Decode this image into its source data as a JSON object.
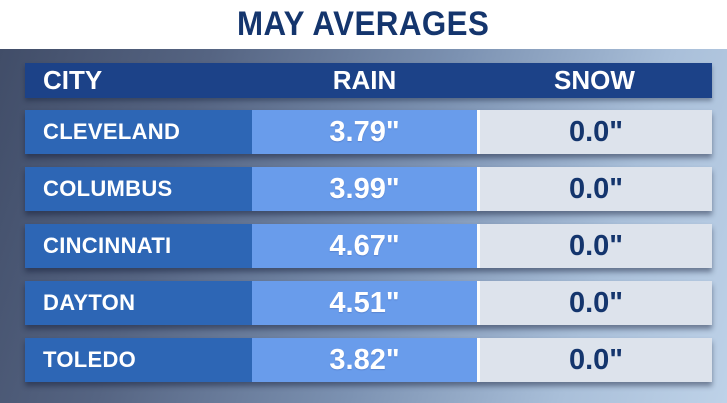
{
  "title": "MAY AVERAGES",
  "table": {
    "columns": [
      "CITY",
      "RAIN",
      "SNOW"
    ],
    "rows": [
      {
        "city": "CLEVELAND",
        "rain": "3.79\"",
        "snow": "0.0\""
      },
      {
        "city": "COLUMBUS",
        "rain": "3.99\"",
        "snow": "0.0\""
      },
      {
        "city": "CINCINNATI",
        "rain": "4.67\"",
        "snow": "0.0\""
      },
      {
        "city": "DAYTON",
        "rain": "4.51\"",
        "snow": "0.0\""
      },
      {
        "city": "TOLEDO",
        "rain": "3.82\"",
        "snow": "0.0\""
      }
    ]
  },
  "chart_data": {
    "type": "table",
    "title": "MAY AVERAGES",
    "columns": [
      "CITY",
      "RAIN",
      "SNOW"
    ],
    "rows": [
      [
        "CLEVELAND",
        "3.79\"",
        "0.0\""
      ],
      [
        "COLUMBUS",
        "3.99\"",
        "0.0\""
      ],
      [
        "CINCINNATI",
        "4.67\"",
        "0.0\""
      ],
      [
        "DAYTON",
        "4.51\"",
        "0.0\""
      ],
      [
        "TOLEDO",
        "3.82\"",
        "0.0\""
      ]
    ],
    "rain_values_inches": [
      3.79,
      3.99,
      4.67,
      4.51,
      3.82
    ],
    "snow_values_inches": [
      0.0,
      0.0,
      0.0,
      0.0,
      0.0
    ]
  },
  "colors": {
    "title_text": "#14356d",
    "title_band_bg": "#ffffff",
    "header_bg": "#1c4288",
    "header_text": "#ffffff",
    "city_cell_bg": "#2d66b5",
    "rain_cell_bg": "#699ceb",
    "snow_cell_bg": "#dde3ec",
    "snow_text": "#14356d",
    "stage_gradient_dark": "#414d68",
    "stage_gradient_light": "#bed2e8"
  }
}
